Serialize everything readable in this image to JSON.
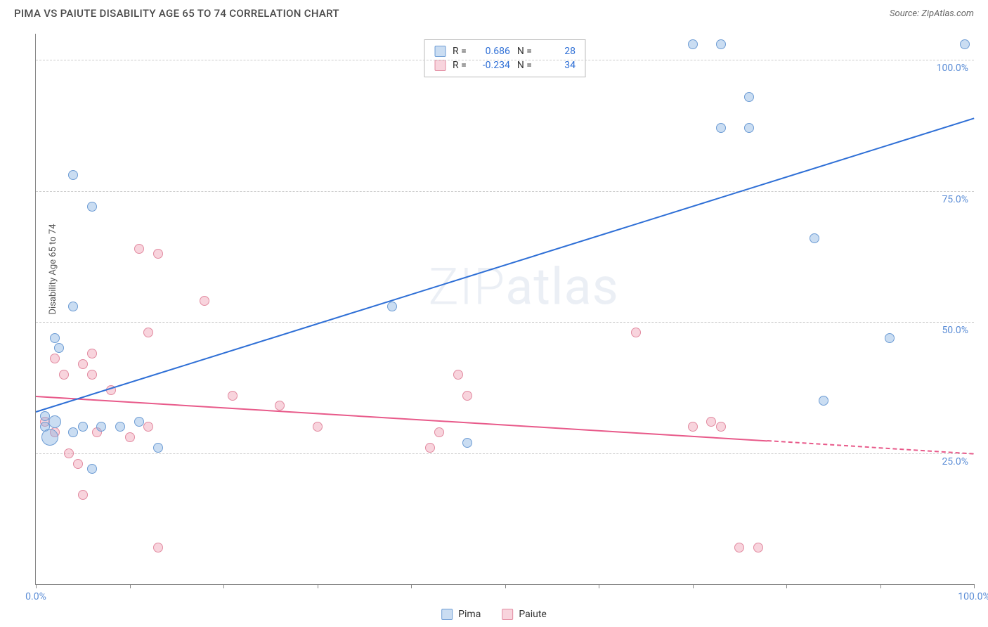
{
  "title": "PIMA VS PAIUTE DISABILITY AGE 65 TO 74 CORRELATION CHART",
  "source": "Source: ZipAtlas.com",
  "ylabel": "Disability Age 65 to 74",
  "watermark": "ZIPatlas",
  "chart": {
    "type": "scatter",
    "xlim": [
      0,
      100
    ],
    "ylim": [
      0,
      105
    ],
    "xtick_positions": [
      0,
      10,
      20,
      30,
      40,
      50,
      60,
      70,
      80,
      90,
      100
    ],
    "xtick_labels": {
      "0": "0.0%",
      "100": "100.0%"
    },
    "ytick_positions": [
      25,
      50,
      75,
      100
    ],
    "ytick_labels": [
      "25.0%",
      "50.0%",
      "75.0%",
      "100.0%"
    ],
    "grid_color": "#cccccc",
    "background_color": "#ffffff"
  },
  "series": {
    "pima": {
      "label": "Pima",
      "fill": "rgba(137, 179, 226, 0.45)",
      "stroke": "#6d9cd4",
      "line_color": "#2e6fd6",
      "r_value": "0.686",
      "n_value": "28",
      "trend": {
        "x1": 0,
        "y1": 33,
        "x2": 100,
        "y2": 89
      },
      "points": [
        {
          "x": 1,
          "y": 30,
          "r": 7
        },
        {
          "x": 1,
          "y": 32,
          "r": 7
        },
        {
          "x": 2,
          "y": 31,
          "r": 9
        },
        {
          "x": 1.5,
          "y": 28,
          "r": 12
        },
        {
          "x": 2,
          "y": 47,
          "r": 7
        },
        {
          "x": 2.5,
          "y": 45,
          "r": 7
        },
        {
          "x": 4,
          "y": 78,
          "r": 7
        },
        {
          "x": 4,
          "y": 53,
          "r": 7
        },
        {
          "x": 5,
          "y": 30,
          "r": 7
        },
        {
          "x": 6,
          "y": 72,
          "r": 7
        },
        {
          "x": 6,
          "y": 22,
          "r": 7
        },
        {
          "x": 7,
          "y": 30,
          "r": 7
        },
        {
          "x": 9,
          "y": 30,
          "r": 7
        },
        {
          "x": 11,
          "y": 31,
          "r": 7
        },
        {
          "x": 13,
          "y": 26,
          "r": 7
        },
        {
          "x": 38,
          "y": 53,
          "r": 7
        },
        {
          "x": 46,
          "y": 27,
          "r": 7
        },
        {
          "x": 70,
          "y": 103,
          "r": 7
        },
        {
          "x": 73,
          "y": 103,
          "r": 7
        },
        {
          "x": 73,
          "y": 87,
          "r": 7
        },
        {
          "x": 76,
          "y": 87,
          "r": 7
        },
        {
          "x": 76,
          "y": 93,
          "r": 7
        },
        {
          "x": 83,
          "y": 66,
          "r": 7
        },
        {
          "x": 84,
          "y": 35,
          "r": 7
        },
        {
          "x": 91,
          "y": 47,
          "r": 7
        },
        {
          "x": 99,
          "y": 103,
          "r": 7
        },
        {
          "x": 4,
          "y": 29,
          "r": 7
        }
      ]
    },
    "paiute": {
      "label": "Paiute",
      "fill": "rgba(240, 160, 180, 0.45)",
      "stroke": "#e28aa0",
      "line_color": "#e85a8a",
      "r_value": "-0.234",
      "n_value": "34",
      "trend": {
        "x1": 0,
        "y1": 36,
        "x2": 78,
        "y2": 27.5
      },
      "trend_dash": {
        "x1": 78,
        "y1": 27.5,
        "x2": 100,
        "y2": 25
      },
      "points": [
        {
          "x": 1,
          "y": 31,
          "r": 7
        },
        {
          "x": 2,
          "y": 29,
          "r": 7
        },
        {
          "x": 2,
          "y": 43,
          "r": 7
        },
        {
          "x": 3,
          "y": 40,
          "r": 7
        },
        {
          "x": 3.5,
          "y": 25,
          "r": 7
        },
        {
          "x": 4.5,
          "y": 23,
          "r": 7
        },
        {
          "x": 5,
          "y": 17,
          "r": 7
        },
        {
          "x": 5,
          "y": 42,
          "r": 7
        },
        {
          "x": 6,
          "y": 44,
          "r": 7
        },
        {
          "x": 6.5,
          "y": 29,
          "r": 7
        },
        {
          "x": 6,
          "y": 40,
          "r": 7
        },
        {
          "x": 8,
          "y": 37,
          "r": 7
        },
        {
          "x": 10,
          "y": 28,
          "r": 7
        },
        {
          "x": 11,
          "y": 64,
          "r": 7
        },
        {
          "x": 12,
          "y": 48,
          "r": 7
        },
        {
          "x": 12,
          "y": 30,
          "r": 7
        },
        {
          "x": 13,
          "y": 63,
          "r": 7
        },
        {
          "x": 13,
          "y": 7,
          "r": 7
        },
        {
          "x": 18,
          "y": 54,
          "r": 7
        },
        {
          "x": 21,
          "y": 36,
          "r": 7
        },
        {
          "x": 26,
          "y": 34,
          "r": 7
        },
        {
          "x": 30,
          "y": 30,
          "r": 7
        },
        {
          "x": 42,
          "y": 26,
          "r": 7
        },
        {
          "x": 43,
          "y": 29,
          "r": 7
        },
        {
          "x": 45,
          "y": 40,
          "r": 7
        },
        {
          "x": 46,
          "y": 36,
          "r": 7
        },
        {
          "x": 64,
          "y": 48,
          "r": 7
        },
        {
          "x": 70,
          "y": 30,
          "r": 7
        },
        {
          "x": 72,
          "y": 31,
          "r": 7
        },
        {
          "x": 73,
          "y": 30,
          "r": 7
        },
        {
          "x": 75,
          "y": 7,
          "r": 7
        },
        {
          "x": 77,
          "y": 7,
          "r": 7
        }
      ]
    }
  },
  "legend": [
    {
      "key": "pima",
      "label": "Pima"
    },
    {
      "key": "paiute",
      "label": "Paiute"
    }
  ]
}
